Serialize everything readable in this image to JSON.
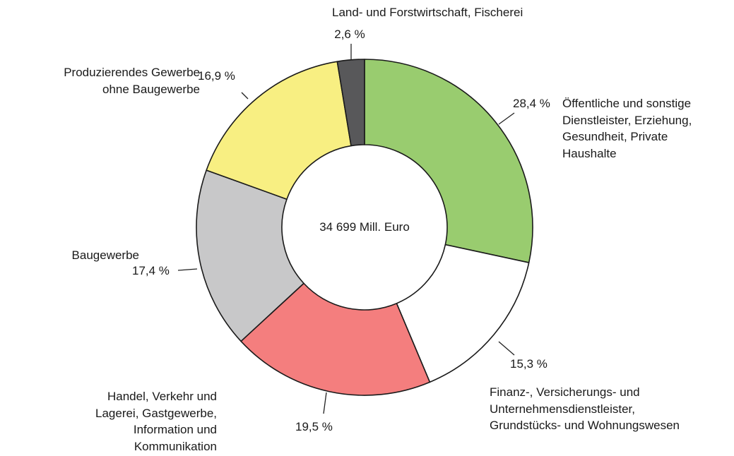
{
  "chart_data": {
    "type": "donut",
    "categories": [
      "Öffentliche und sonstige\nDienstleister, Erziehung,\nGesundheit, Private\nHaushalte",
      "Finanz-, Versicherungs- und\nUnternehmensdienstleister,\nGrundstücks- und Wohnungswesen",
      "Handel, Verkehr und\nLagerei, Gastgewerbe,\nInformation und\nKommunikation",
      "Baugewerbe",
      "Produzierendes Gewerbe\nohne Baugewerbe",
      "Land- und Forstwirtschaft, Fischerei"
    ],
    "values": [
      28.4,
      15.3,
      19.5,
      17.4,
      16.9,
      2.6
    ],
    "value_labels": [
      "28,4 %",
      "15,3 %",
      "19,5 %",
      "17,4 %",
      "16,9 %",
      "2,6 %"
    ],
    "colors": [
      "#99cc6f",
      "#ffffff",
      "#f47e7e",
      "#c8c8c9",
      "#f8ef82",
      "#58585a"
    ],
    "center_label": "34 699 Mill. Euro"
  }
}
